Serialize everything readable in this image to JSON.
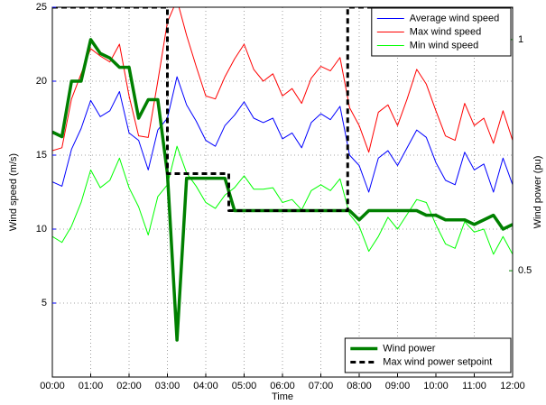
{
  "chart_data": {
    "type": "line",
    "x_label": "Time",
    "y_label": "Wind speed (m/s)",
    "y2_label": "Wind power (pu)",
    "x": [
      0,
      0.25,
      0.5,
      0.75,
      1,
      1.25,
      1.5,
      1.75,
      2,
      2.25,
      2.5,
      2.75,
      3,
      3.25,
      3.5,
      3.75,
      4,
      4.25,
      4.5,
      4.75,
      5,
      5.25,
      5.5,
      5.75,
      6,
      6.25,
      6.5,
      6.75,
      7,
      7.25,
      7.5,
      7.75,
      8,
      8.25,
      8.5,
      8.75,
      9,
      9.25,
      9.5,
      9.75,
      10,
      10.25,
      10.5,
      10.75,
      11,
      11.25,
      11.5,
      11.75,
      12
    ],
    "xlim": [
      0,
      12
    ],
    "xticks": [
      {
        "value": 0,
        "label": "00:00"
      },
      {
        "value": 1,
        "label": "01:00"
      },
      {
        "value": 2,
        "label": "02:00"
      },
      {
        "value": 3,
        "label": "03:00"
      },
      {
        "value": 4,
        "label": "04:00"
      },
      {
        "value": 5,
        "label": "05:00"
      },
      {
        "value": 6,
        "label": "06:00"
      },
      {
        "value": 7,
        "label": "07:00"
      },
      {
        "value": 8,
        "label": "08:00"
      },
      {
        "value": 9,
        "label": "09:00"
      },
      {
        "value": 10,
        "label": "10:00"
      },
      {
        "value": 11,
        "label": "11:00"
      },
      {
        "value": 12,
        "label": "12:00"
      }
    ],
    "ylim": [
      0,
      25
    ],
    "yticks": [
      5,
      10,
      15,
      20,
      25
    ],
    "y_color": "#0000ff",
    "y2lim": [
      0.27,
      1.07
    ],
    "y2ticks": [
      0.5,
      1
    ],
    "y2_color": "#008000",
    "grid": true,
    "legend_loc": {
      "y": "upper right",
      "y2": "lower right"
    },
    "series": [
      {
        "name": "Average wind speed",
        "color": "#0000ff",
        "linewidth": 1,
        "values": [
          13.2,
          12.9,
          15.4,
          16.8,
          18.7,
          17.6,
          18.0,
          19.3,
          16.5,
          16.0,
          14.0,
          16.7,
          17.5,
          20.3,
          18.4,
          17.3,
          16.0,
          15.6,
          17.0,
          17.7,
          18.6,
          17.5,
          17.2,
          17.5,
          16.1,
          16.5,
          15.5,
          17.2,
          17.8,
          17.4,
          18.3,
          15.0,
          14.3,
          12.5,
          14.8,
          15.3,
          14.3,
          15.5,
          16.7,
          16.2,
          14.5,
          13.3,
          13.0,
          15.2,
          14.0,
          14.4,
          12.5,
          14.8,
          13.0
        ]
      },
      {
        "name": "Max wind speed",
        "color": "#ff0000",
        "linewidth": 1,
        "values": [
          15.3,
          15.5,
          18.8,
          20.5,
          22.2,
          21.7,
          21.3,
          22.5,
          19.0,
          16.3,
          16.2,
          20.0,
          24.0,
          25.5,
          23.1,
          21.0,
          19.0,
          18.8,
          20.3,
          21.5,
          22.5,
          20.8,
          20.0,
          20.5,
          19.0,
          19.5,
          18.5,
          20.2,
          21.0,
          20.7,
          21.6,
          18.2,
          17.0,
          15.2,
          17.9,
          18.4,
          17.0,
          18.8,
          20.8,
          19.8,
          18.0,
          16.3,
          16.0,
          18.5,
          17.0,
          17.5,
          15.8,
          18.0,
          16.0
        ]
      },
      {
        "name": "Min wind speed",
        "color": "#00ff00",
        "linewidth": 1,
        "values": [
          9.5,
          9.1,
          10.2,
          11.8,
          14.0,
          12.8,
          13.3,
          14.8,
          12.8,
          11.5,
          9.6,
          12.2,
          13.0,
          15.6,
          13.8,
          12.9,
          11.8,
          11.4,
          12.3,
          12.8,
          13.6,
          12.7,
          12.7,
          12.8,
          11.8,
          12.0,
          11.3,
          12.6,
          13.0,
          12.6,
          13.4,
          11.0,
          10.2,
          8.5,
          9.5,
          10.8,
          10.0,
          11.0,
          12.0,
          11.8,
          10.3,
          9.0,
          8.7,
          10.5,
          9.8,
          10.0,
          8.3,
          9.5,
          8.3
        ]
      },
      {
        "name": "Wind power",
        "color": "#008000",
        "linewidth": 3.5,
        "axis": "y2",
        "values": [
          0.8,
          0.79,
          0.91,
          0.91,
          1.0,
          0.97,
          0.96,
          0.94,
          0.94,
          0.83,
          0.87,
          0.87,
          0.71,
          0.35,
          0.7,
          0.7,
          0.7,
          0.7,
          0.7,
          0.63,
          0.63,
          0.63,
          0.63,
          0.63,
          0.63,
          0.63,
          0.63,
          0.63,
          0.63,
          0.63,
          0.63,
          0.63,
          0.61,
          0.63,
          0.63,
          0.63,
          0.63,
          0.63,
          0.63,
          0.62,
          0.62,
          0.61,
          0.61,
          0.61,
          0.6,
          0.61,
          0.62,
          0.59,
          0.6
        ]
      },
      {
        "name": "Max wind power setpoint",
        "color": "#000000",
        "linewidth": 3,
        "dashed": true,
        "axis": "y2",
        "x": [
          0,
          3.0,
          3.0,
          4.6,
          4.6,
          7.7,
          7.7,
          12
        ],
        "values": [
          1.07,
          1.07,
          0.71,
          0.71,
          0.63,
          0.63,
          1.07,
          1.07
        ]
      }
    ]
  }
}
